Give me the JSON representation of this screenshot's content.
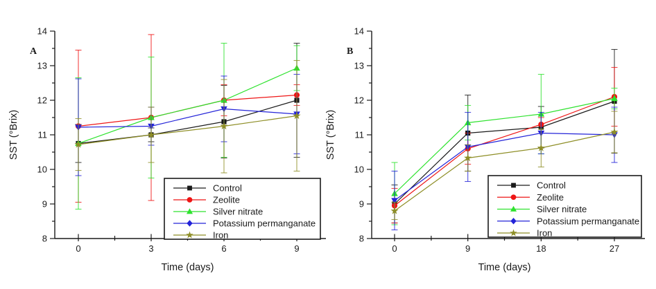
{
  "figure": {
    "background": "#ffffff",
    "axis_color": "#1a1a1a",
    "legend_border_color": "#1a1a1a",
    "legend_background": "#ffffff"
  },
  "chart_data": [
    {
      "type": "line",
      "panel_label": "A",
      "xlabel": "Time (days)",
      "ylabel": "SST (°Brix)",
      "x": [
        0,
        3,
        6,
        9
      ],
      "xticks": [
        0,
        3,
        6,
        9
      ],
      "ylim": [
        8,
        14
      ],
      "yticks": [
        8,
        9,
        10,
        11,
        12,
        13,
        14
      ],
      "grid": false,
      "error_bars": true,
      "legend_position": "inside-bottom-right",
      "series": [
        {
          "name": "Control",
          "color": "#1a1a1a",
          "marker": "square",
          "values": [
            10.75,
            11.0,
            11.38,
            12.0
          ],
          "errors": [
            0.55,
            0.2,
            1.05,
            1.65
          ]
        },
        {
          "name": "Zeolite",
          "color": "#ee1515",
          "marker": "circle",
          "values": [
            11.25,
            11.5,
            12.0,
            12.15
          ],
          "errors": [
            2.2,
            2.4,
            0.45,
            0.3
          ]
        },
        {
          "name": "Silver nitrate",
          "color": "#2ee22e",
          "marker": "triangle-up",
          "values": [
            10.75,
            11.5,
            12.0,
            12.93
          ],
          "errors": [
            1.9,
            1.75,
            1.65,
            0.65
          ]
        },
        {
          "name": "Potassium permanganate",
          "color": "#2323d8",
          "marker": "triangle-down",
          "legend_marker": "diamond",
          "values": [
            11.22,
            11.25,
            11.75,
            11.6
          ],
          "errors": [
            1.4,
            0.55,
            0.95,
            1.15
          ]
        },
        {
          "name": "Iron",
          "color": "#8e8e26",
          "marker": "star",
          "values": [
            10.72,
            11.0,
            11.25,
            11.55
          ],
          "errors": [
            0.75,
            0.8,
            1.35,
            1.6
          ]
        }
      ]
    },
    {
      "type": "line",
      "panel_label": "B",
      "xlabel": "Time (days)",
      "ylabel": "SST (°Brix)",
      "x": [
        0,
        9,
        18,
        27
      ],
      "xticks": [
        0,
        9,
        18,
        27
      ],
      "ylim": [
        8,
        14
      ],
      "yticks": [
        8,
        9,
        10,
        11,
        12,
        13,
        14
      ],
      "grid": false,
      "error_bars": true,
      "legend_position": "inside-bottom-right",
      "series": [
        {
          "name": "Control",
          "color": "#1a1a1a",
          "marker": "square",
          "values": [
            9.0,
            11.05,
            11.22,
            11.97
          ],
          "errors": [
            0.55,
            1.1,
            0.6,
            1.5
          ]
        },
        {
          "name": "Zeolite",
          "color": "#ee1515",
          "marker": "circle",
          "values": [
            8.95,
            10.6,
            11.3,
            12.1
          ],
          "errors": [
            0.5,
            0.45,
            0.2,
            0.85
          ]
        },
        {
          "name": "Silver nitrate",
          "color": "#2ee22e",
          "marker": "triangle-up",
          "values": [
            9.3,
            11.35,
            11.6,
            12.05
          ],
          "errors": [
            0.9,
            0.5,
            1.15,
            0.3
          ]
        },
        {
          "name": "Potassium permanganate",
          "color": "#2323d8",
          "marker": "triangle-down",
          "legend_marker": "diamond",
          "values": [
            9.1,
            10.65,
            11.05,
            11.0
          ],
          "errors": [
            0.85,
            1.0,
            0.6,
            0.8
          ]
        },
        {
          "name": "Iron",
          "color": "#8e8e26",
          "marker": "star",
          "values": [
            8.8,
            10.33,
            10.62,
            11.08
          ],
          "errors": [
            0.25,
            0.38,
            0.55,
            0.6
          ]
        }
      ]
    }
  ]
}
